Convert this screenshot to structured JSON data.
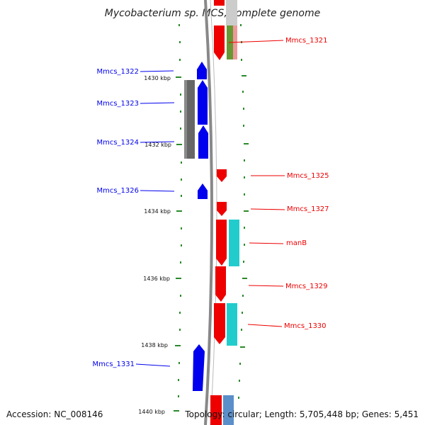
{
  "title": "Mycobacterium sp. MCS, complete genome",
  "accession": "Accession: NC_008146",
  "topology": "Topology: circular; Length: 5,705,448 bp; Genes: 5,451",
  "colors": {
    "reverse": "#0000ee",
    "forward": "#ee0000",
    "rna_or_other": "#22cccc",
    "tick": "#2a8a2a",
    "backbone": "#888888",
    "gray_feature": "#666666",
    "green_feature": "#669933",
    "pink_feature": "#ee9999",
    "steelblue_feature": "#5b8fc9"
  },
  "kbp_labels": [
    {
      "text": "1430 kbp"
    },
    {
      "text": "1432 kbp"
    },
    {
      "text": "1434 kbp"
    },
    {
      "text": "1436 kbp"
    },
    {
      "text": "1438 kbp"
    },
    {
      "text": "1440 kbp"
    }
  ],
  "gene_labels": [
    {
      "text": "Mmcs_1321",
      "strand": "forward"
    },
    {
      "text": "Mmcs_1322",
      "strand": "reverse"
    },
    {
      "text": "Mmcs_1323",
      "strand": "reverse"
    },
    {
      "text": "Mmcs_1324",
      "strand": "reverse"
    },
    {
      "text": "Mmcs_1325",
      "strand": "forward"
    },
    {
      "text": "Mmcs_1326",
      "strand": "reverse"
    },
    {
      "text": "Mmcs_1327",
      "strand": "forward"
    },
    {
      "text": "manB",
      "strand": "forward"
    },
    {
      "text": "Mmcs_1329",
      "strand": "forward"
    },
    {
      "text": "Mmcs_1330",
      "strand": "forward"
    },
    {
      "text": "Mmcs_1331",
      "strand": "reverse"
    }
  ]
}
